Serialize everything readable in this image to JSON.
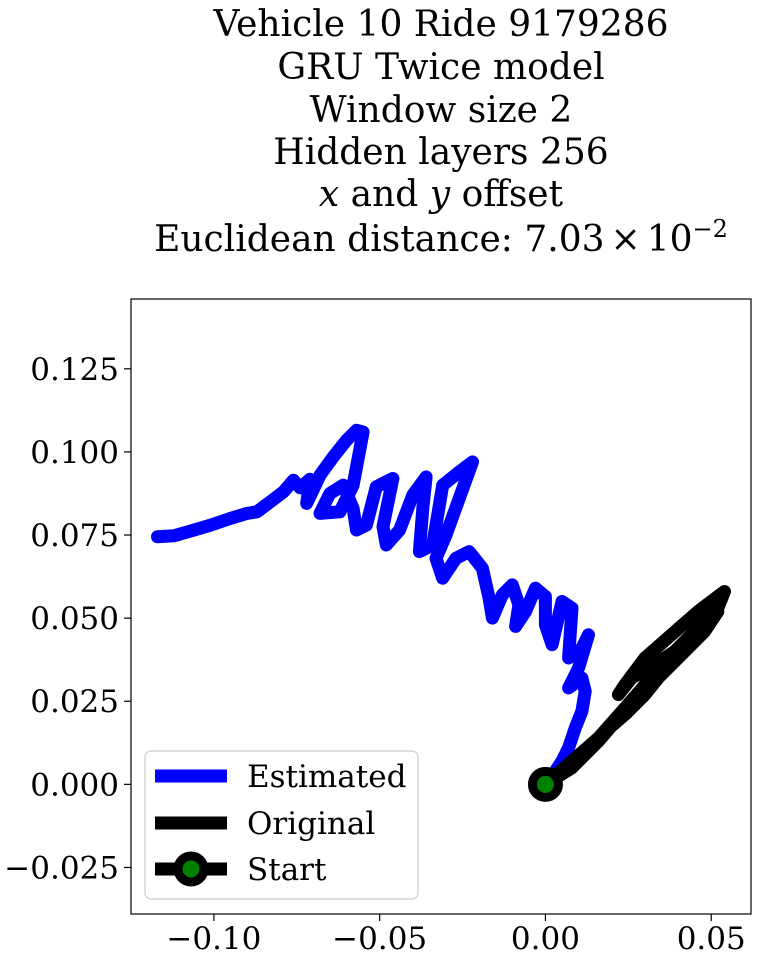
{
  "chart_data": {
    "type": "line",
    "title_lines": [
      "Vehicle 10 Ride 9179286",
      "GRU Twice model",
      "Window size 2",
      "Hidden layers 256"
    ],
    "title_offset_line": {
      "x": "x",
      "and": " and ",
      "y": "y",
      "suffix": " offset"
    },
    "title_distance_line": {
      "prefix": "Euclidean distance: ",
      "mantissa": "7.03",
      "times": "×",
      "base": "10",
      "exponent": "−2"
    },
    "xlim": [
      -0.125,
      0.062
    ],
    "ylim": [
      -0.039,
      0.146
    ],
    "x_ticks": [
      {
        "value": -0.1,
        "label": "−0.10"
      },
      {
        "value": -0.05,
        "label": "−0.05"
      },
      {
        "value": 0.0,
        "label": "0.00"
      },
      {
        "value": 0.05,
        "label": "0.05"
      }
    ],
    "y_ticks": [
      {
        "value": -0.025,
        "label": "−0.025"
      },
      {
        "value": 0.0,
        "label": "0.000"
      },
      {
        "value": 0.025,
        "label": "0.025"
      },
      {
        "value": 0.05,
        "label": "0.050"
      },
      {
        "value": 0.075,
        "label": "0.075"
      },
      {
        "value": 0.1,
        "label": "0.100"
      },
      {
        "value": 0.125,
        "label": "0.125"
      }
    ],
    "legend": {
      "position": "lower left",
      "entries": [
        "Estimated",
        "Original",
        "Start"
      ]
    },
    "series": [
      {
        "name": "Estimated",
        "color": "#0000ff",
        "points": [
          [
            -0.117,
            0.0745
          ],
          [
            -0.112,
            0.0748
          ],
          [
            -0.107,
            0.0762
          ],
          [
            -0.101,
            0.078
          ],
          [
            -0.095,
            0.08
          ],
          [
            -0.09,
            0.0815
          ],
          [
            -0.087,
            0.082
          ],
          [
            -0.083,
            0.085
          ],
          [
            -0.079,
            0.088
          ],
          [
            -0.076,
            0.0915
          ],
          [
            -0.074,
            0.0892
          ],
          [
            -0.071,
            0.0918
          ],
          [
            -0.072,
            0.0845
          ],
          [
            -0.068,
            0.093
          ],
          [
            -0.064,
            0.0985
          ],
          [
            -0.06,
            0.1035
          ],
          [
            -0.057,
            0.1065
          ],
          [
            -0.055,
            0.106
          ],
          [
            -0.058,
            0.09
          ],
          [
            -0.062,
            0.082
          ],
          [
            -0.068,
            0.0815
          ],
          [
            -0.065,
            0.0875
          ],
          [
            -0.061,
            0.09
          ],
          [
            -0.058,
            0.083
          ],
          [
            -0.057,
            0.0765
          ],
          [
            -0.054,
            0.078
          ],
          [
            -0.051,
            0.0895
          ],
          [
            -0.046,
            0.092
          ],
          [
            -0.049,
            0.0775
          ],
          [
            -0.048,
            0.072
          ],
          [
            -0.044,
            0.0765
          ],
          [
            -0.04,
            0.087
          ],
          [
            -0.036,
            0.0925
          ],
          [
            -0.037,
            0.083
          ],
          [
            -0.038,
            0.07
          ],
          [
            -0.034,
            0.072
          ],
          [
            -0.031,
            0.09
          ],
          [
            -0.026,
            0.094
          ],
          [
            -0.022,
            0.097
          ],
          [
            -0.026,
            0.086
          ],
          [
            -0.03,
            0.075
          ],
          [
            -0.033,
            0.068
          ],
          [
            -0.031,
            0.062
          ],
          [
            -0.027,
            0.068
          ],
          [
            -0.023,
            0.07
          ],
          [
            -0.019,
            0.065
          ],
          [
            -0.017,
            0.056
          ],
          [
            -0.016,
            0.05
          ],
          [
            -0.013,
            0.057
          ],
          [
            -0.01,
            0.06
          ],
          [
            -0.008,
            0.054
          ],
          [
            -0.009,
            0.0475
          ],
          [
            -0.006,
            0.052
          ],
          [
            -0.003,
            0.059
          ],
          [
            0.0,
            0.0565
          ],
          [
            0.0,
            0.048
          ],
          [
            0.002,
            0.042
          ],
          [
            0.005,
            0.055
          ],
          [
            0.008,
            0.053
          ],
          [
            0.007,
            0.038
          ],
          [
            0.011,
            0.041
          ],
          [
            0.013,
            0.045
          ],
          [
            0.01,
            0.035
          ],
          [
            0.007,
            0.029
          ],
          [
            0.011,
            0.032
          ],
          [
            0.012,
            0.028
          ],
          [
            0.011,
            0.022
          ],
          [
            0.009,
            0.017
          ],
          [
            0.007,
            0.011
          ],
          [
            0.005,
            0.007
          ],
          [
            0.003,
            0.004
          ],
          [
            0.001,
            0.001
          ],
          [
            0.0,
            0.0
          ]
        ]
      },
      {
        "name": "Original",
        "color": "#000000",
        "points": [
          [
            0.0,
            0.0
          ],
          [
            0.008,
            0.007
          ],
          [
            0.016,
            0.014
          ],
          [
            0.024,
            0.023
          ],
          [
            0.031,
            0.031
          ],
          [
            0.038,
            0.039
          ],
          [
            0.045,
            0.046
          ],
          [
            0.052,
            0.053
          ],
          [
            0.054,
            0.058
          ],
          [
            0.046,
            0.052
          ],
          [
            0.038,
            0.045
          ],
          [
            0.03,
            0.038
          ],
          [
            0.024,
            0.03
          ],
          [
            0.022,
            0.027
          ],
          [
            0.026,
            0.032
          ],
          [
            0.033,
            0.036
          ],
          [
            0.039,
            0.04
          ],
          [
            0.044,
            0.044
          ],
          [
            0.049,
            0.049
          ],
          [
            0.046,
            0.046
          ],
          [
            0.04,
            0.04
          ],
          [
            0.034,
            0.033
          ],
          [
            0.028,
            0.026
          ],
          [
            0.024,
            0.0225
          ],
          [
            0.029,
            0.027
          ],
          [
            0.034,
            0.032
          ],
          [
            0.03,
            0.027
          ],
          [
            0.024,
            0.021
          ],
          [
            0.017,
            0.015
          ],
          [
            0.01,
            0.008
          ],
          [
            0.004,
            0.003
          ],
          [
            0.0,
            0.0
          ],
          [
            0.008,
            0.005
          ],
          [
            0.016,
            0.013
          ],
          [
            0.022,
            0.02
          ],
          [
            0.029,
            0.027
          ],
          [
            0.036,
            0.034
          ],
          [
            0.042,
            0.04
          ],
          [
            0.048,
            0.046
          ],
          [
            0.052,
            0.052
          ]
        ]
      }
    ],
    "start_point": {
      "name": "Start",
      "x": 0.0,
      "y": 0.0,
      "edge_color": "#000000",
      "face_color": "#008000"
    }
  }
}
